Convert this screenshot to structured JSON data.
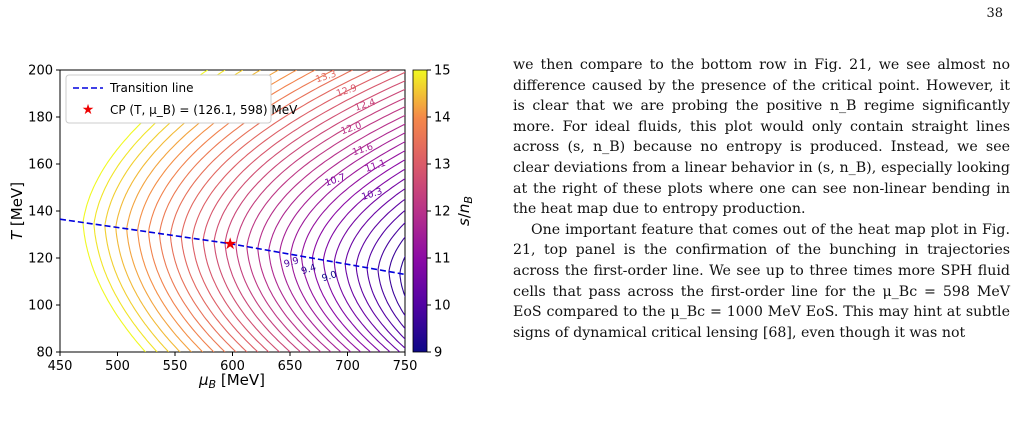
{
  "page": {
    "number": "38"
  },
  "chart_data": {
    "type": "contour",
    "xlabel": "μ_B [MeV]",
    "ylabel": "T [MeV]",
    "xlim": [
      450,
      750
    ],
    "ylim": [
      80,
      200
    ],
    "xticks": [
      "450",
      "500",
      "550",
      "600",
      "650",
      "700",
      "750"
    ],
    "yticks": [
      "80",
      "100",
      "120",
      "140",
      "160",
      "180",
      "200"
    ],
    "colorbar": {
      "label": "s/n_B",
      "range": [
        9,
        15
      ],
      "ticks": [
        "9",
        "10",
        "11",
        "12",
        "13",
        "14",
        "15"
      ]
    },
    "legend": {
      "position": "top-left",
      "entries": [
        "Transition line",
        "CP  (T, μ_B) = (126.1, 598) MeV"
      ]
    },
    "transition_line": {
      "x": [
        450,
        598,
        750
      ],
      "y": [
        136.5,
        126.1,
        113
      ]
    },
    "critical_point": {
      "x": 598,
      "y": 126.1
    },
    "contour_labels": [
      "13.3",
      "12.9",
      "12.4",
      "12.0",
      "11.6",
      "11.1",
      "10.7",
      "10.3",
      "9.9",
      "9.4",
      "9.0"
    ]
  },
  "text": {
    "p1": "we then compare to the bottom row in Fig. 21, we see almost no difference caused by the presence of the critical point. However, it is clear that we are probing the positive n_B regime significantly more. For ideal fluids, this plot would only contain straight lines across (s, n_B) because no entropy is produced. Instead, we see clear deviations from a linear behavior in (s, n_B), especially looking at the right of these plots where one can see non-linear bending in the heat map due to entropy production.",
    "p2": "One important feature that comes out of the heat map plot in Fig. 21, top panel is the confirmation of the bunching in trajectories across the first-order line. We see up to three times more SPH fluid cells that pass across the first-order line for the μ_Bc = 598 MeV EoS compared to the μ_Bc = 1000 MeV EoS. This may hint at subtle signs of dynamical critical lensing [68], even though it was not"
  }
}
